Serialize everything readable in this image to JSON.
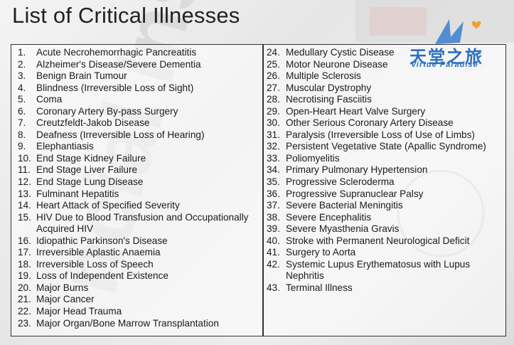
{
  "title": "List of Critical Illnesses",
  "logo": {
    "chinese": "天堂之旅",
    "english": "Virtue Paradise"
  },
  "columns": [
    [
      {
        "number": "1.",
        "name": "Acute Necrohemorrhagic Pancreatitis"
      },
      {
        "number": "2.",
        "name": "Alzheimer's Disease/Severe Dementia"
      },
      {
        "number": "3.",
        "name": "Benign Brain Tumour"
      },
      {
        "number": "4.",
        "name": "Blindness (Irreversible Loss of Sight)"
      },
      {
        "number": "5.",
        "name": "Coma"
      },
      {
        "number": "6.",
        "name": "Coronary Artery By-pass Surgery"
      },
      {
        "number": "7.",
        "name": "Creutzfeldt-Jakob Disease"
      },
      {
        "number": "8.",
        "name": "Deafness (Irreversible Loss of Hearing)"
      },
      {
        "number": "9.",
        "name": "Elephantiasis"
      },
      {
        "number": "10.",
        "name": "End Stage Kidney Failure"
      },
      {
        "number": "11.",
        "name": "End Stage Liver Failure"
      },
      {
        "number": "12.",
        "name": "End Stage Lung Disease"
      },
      {
        "number": "13.",
        "name": "Fulminant Hepatitis"
      },
      {
        "number": "14.",
        "name": "Heart Attack of Specified Severity"
      },
      {
        "number": "15.",
        "name": "HIV Due to Blood Transfusion and Occupationally Acquired HIV"
      },
      {
        "number": "16.",
        "name": "Idiopathic Parkinson's Disease"
      },
      {
        "number": "17.",
        "name": "Irreversible Aplastic Anaemia"
      },
      {
        "number": "18.",
        "name": "Irreversible Loss of Speech"
      },
      {
        "number": "19.",
        "name": "Loss of Independent Existence"
      },
      {
        "number": "20.",
        "name": "Major Burns"
      },
      {
        "number": "21.",
        "name": "Major Cancer"
      },
      {
        "number": "22.",
        "name": "Major Head Trauma"
      },
      {
        "number": "23.",
        "name": "Major Organ/Bone Marrow Transplantation"
      }
    ],
    [
      {
        "number": "24.",
        "name": "Medullary Cystic Disease"
      },
      {
        "number": "25.",
        "name": "Motor Neurone Disease"
      },
      {
        "number": "26.",
        "name": "Multiple Sclerosis"
      },
      {
        "number": "27.",
        "name": "Muscular Dystrophy"
      },
      {
        "number": "28.",
        "name": "Necrotising Fasciitis"
      },
      {
        "number": "29.",
        "name": "Open-Heart Heart Valve Surgery"
      },
      {
        "number": "30.",
        "name": "Other Serious Coronary Artery Disease"
      },
      {
        "number": "31.",
        "name": "Paralysis (Irreversible Loss of Use of Limbs)"
      },
      {
        "number": "32.",
        "name": "Persistent Vegetative State (Apallic Syndrome)"
      },
      {
        "number": "33.",
        "name": "Poliomyelitis"
      },
      {
        "number": "34.",
        "name": "Primary Pulmonary Hypertension"
      },
      {
        "number": "35.",
        "name": "Progressive Scleroderma"
      },
      {
        "number": "36.",
        "name": "Progressive Supranuclear Palsy"
      },
      {
        "number": "37.",
        "name": "Severe Bacterial Meningitis"
      },
      {
        "number": "38.",
        "name": "Severe Encephalitis"
      },
      {
        "number": "39.",
        "name": "Severe Myasthenia Gravis"
      },
      {
        "number": "40.",
        "name": "Stroke with Permanent Neurological Deficit"
      },
      {
        "number": "41.",
        "name": "Surgery to Aorta"
      },
      {
        "number": "42.",
        "name": "Systemic Lupus Erythematosus with Lupus Nephritis"
      },
      {
        "number": "43.",
        "name": "Terminal Illness"
      }
    ]
  ]
}
